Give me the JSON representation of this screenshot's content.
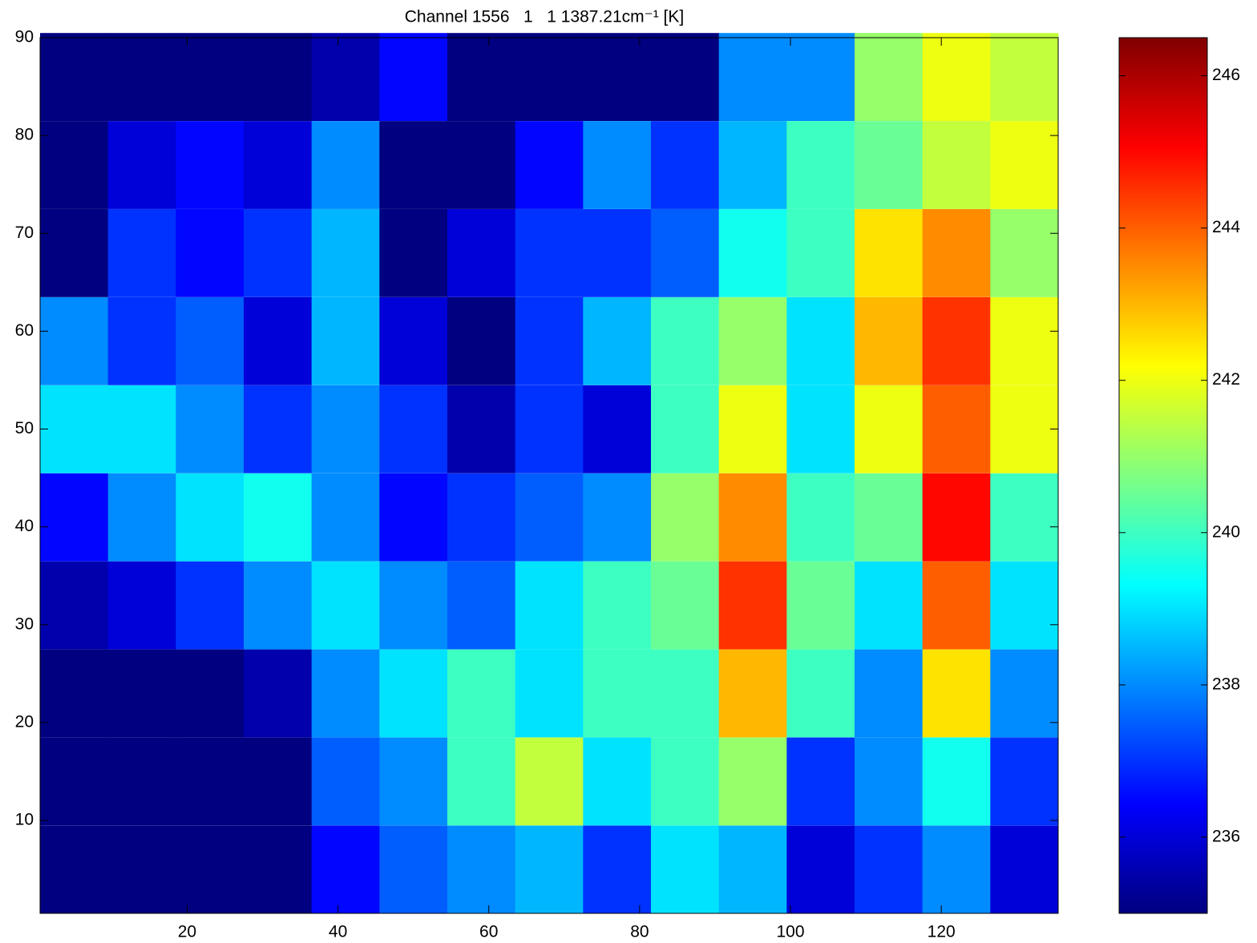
{
  "chart_data": {
    "type": "heatmap",
    "title": "Channel 1556   1   1 1387.21cm⁻¹ [K]",
    "colormap": "jet",
    "x": [
      5,
      14,
      23,
      32,
      41,
      50,
      59,
      68,
      77,
      86,
      95,
      104,
      113,
      122,
      131
    ],
    "y": [
      5,
      14,
      23,
      32,
      41,
      50,
      59,
      68,
      77,
      86
    ],
    "values": [
      [
        235,
        235,
        235,
        235,
        236.5,
        237.5,
        238,
        238.5,
        237,
        239,
        238.5,
        236,
        237,
        238,
        236
      ],
      [
        235,
        235,
        235,
        235,
        237.5,
        238,
        240,
        241.5,
        239,
        240,
        241,
        237,
        238,
        239.5,
        237
      ],
      [
        235,
        235,
        235,
        235.5,
        238,
        239,
        240,
        239,
        240,
        240,
        243,
        240,
        238,
        242.5,
        238
      ],
      [
        235.5,
        236,
        237,
        238,
        239,
        238,
        237.5,
        239,
        240,
        240.5,
        244.5,
        240.5,
        239,
        244,
        239
      ],
      [
        236.5,
        238,
        239,
        239.5,
        238,
        236.5,
        237,
        237.5,
        238,
        241,
        243.5,
        240,
        240.5,
        245,
        240
      ],
      [
        239,
        239,
        238,
        237,
        238,
        237,
        235.5,
        237,
        236,
        240,
        242,
        239,
        242,
        244,
        242
      ],
      [
        238,
        237,
        237.5,
        236,
        238.5,
        236,
        235,
        237,
        238.5,
        240,
        241,
        239,
        243,
        244.5,
        242
      ],
      [
        235,
        237,
        236.5,
        237,
        238.5,
        235,
        236,
        237,
        237,
        237.5,
        239.5,
        240,
        242.5,
        243.5,
        241
      ],
      [
        235,
        236,
        236.5,
        236,
        238,
        235,
        235,
        236.5,
        238,
        237,
        238.5,
        240,
        240.5,
        241.5,
        242
      ],
      [
        235,
        235,
        235,
        235,
        235.5,
        236.5,
        235,
        235,
        235,
        235,
        238,
        238,
        241,
        242,
        241.5
      ]
    ],
    "xlim": [
      0.5,
      135.5
    ],
    "ylim": [
      0.5,
      90
    ],
    "xticks": [
      20,
      40,
      60,
      80,
      100,
      120
    ],
    "yticks": [
      10,
      20,
      30,
      40,
      50,
      60,
      70,
      80,
      90
    ],
    "clim": [
      235,
      246.5
    ],
    "cticks": [
      236,
      238,
      240,
      242,
      244,
      246
    ]
  }
}
